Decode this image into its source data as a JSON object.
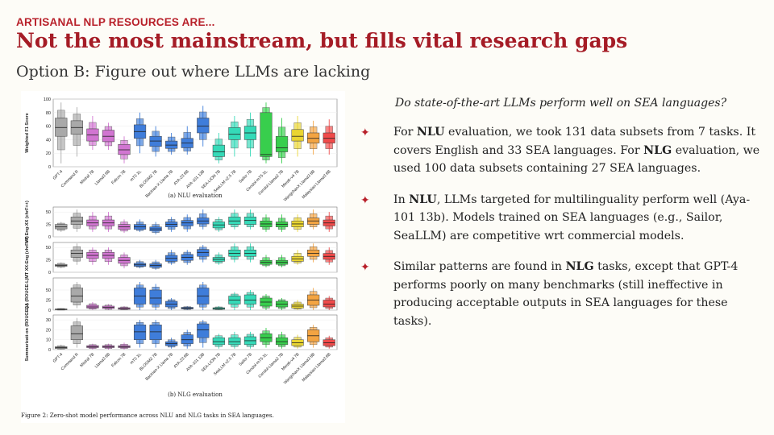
{
  "slide": {
    "kicker": "ARTISANAL NLP RESOURCES ARE...",
    "title": "Not the most mainstream, but fills vital research gaps",
    "subtitle": "Option B: Figure out where LLMs are lacking",
    "question": "Do state-of-the-art LLMs perform well on SEA languages?",
    "bullet_icon": "four-point-star-icon",
    "accent_color": "#a51c26",
    "bullets": [
      {
        "parts": [
          "For ",
          "NLU",
          " evaluation, we took 131 data subsets from 7 tasks. It covers English and 33 SEA languages. For ",
          "NLG",
          " evaluation, we used 100 data subsets containing 27 SEA languages."
        ]
      },
      {
        "parts": [
          "In ",
          "NLU",
          ", LLMs targeted for multilinguality perform well (Aya-101 13b). Models trained on SEA languages (e.g., Sailor, SeaLLM) are competitive wrt commercial models."
        ]
      },
      {
        "parts": [
          "Similar patterns are found in ",
          "NLG",
          " tasks, except that GPT-4 performs poorly on many benchmarks (still ineffective in producing acceptable outputs in SEA languages for these tasks)."
        ]
      }
    ]
  },
  "chart_data": {
    "type": "boxen",
    "caption": "Figure 2: Zero-shot model performance across NLU and NLG tasks in SEA languages.",
    "nlu": {
      "label": "(a) NLU evaluation",
      "ylabel": "Weighted F1 Score",
      "ylim": [
        0,
        100
      ],
      "yticks": [
        "0",
        "20",
        "40",
        "60",
        "80",
        "100"
      ],
      "models": [
        "GPT-4",
        "Command R",
        "Mistral 7B",
        "Llama3 8B",
        "Falcon 7B",
        "mT0 XL",
        "BLOOMZ 7B",
        "Bactrian-X Llama 7B",
        "AYA-23 8B",
        "AYA-101 13B",
        "SEA-LION 7B",
        "SeaLLM v2.5 7B",
        "Sailor 7B",
        "Cendol-mT5 XL",
        "Cendol-Llama2 7B",
        "Merak-v4 7B",
        "WangchanX Llama3 8B",
        "Malaysian Llama3 8B"
      ],
      "colors": [
        "#a0a0a0",
        "#a0a0a0",
        "#cc66cc",
        "#cc66cc",
        "#cc66cc",
        "#2a6fd6",
        "#2a6fd6",
        "#2a6fd6",
        "#2a6fd6",
        "#2a6fd6",
        "#1fd6b0",
        "#1fd6b0",
        "#1fd6b0",
        "#22c93a",
        "#22c93a",
        "#e8d01c",
        "#f29a2e",
        "#ee3636"
      ],
      "stats": [
        {
          "min": 5,
          "q1": 45,
          "median": 58,
          "q3": 72,
          "max": 95
        },
        {
          "min": 15,
          "q1": 48,
          "median": 58,
          "q3": 68,
          "max": 88
        },
        {
          "min": 25,
          "q1": 38,
          "median": 47,
          "q3": 56,
          "max": 75
        },
        {
          "min": 25,
          "q1": 37,
          "median": 45,
          "q3": 54,
          "max": 65
        },
        {
          "min": 5,
          "q1": 18,
          "median": 25,
          "q3": 33,
          "max": 45
        },
        {
          "min": 20,
          "q1": 42,
          "median": 52,
          "q3": 62,
          "max": 80
        },
        {
          "min": 15,
          "q1": 30,
          "median": 38,
          "q3": 45,
          "max": 60
        },
        {
          "min": 18,
          "q1": 27,
          "median": 32,
          "q3": 38,
          "max": 50
        },
        {
          "min": 18,
          "q1": 28,
          "median": 35,
          "q3": 42,
          "max": 60
        },
        {
          "min": 30,
          "q1": 50,
          "median": 60,
          "q3": 72,
          "max": 90
        },
        {
          "min": 5,
          "q1": 15,
          "median": 22,
          "q3": 32,
          "max": 50
        },
        {
          "min": 15,
          "q1": 40,
          "median": 48,
          "q3": 58,
          "max": 75
        },
        {
          "min": 15,
          "q1": 40,
          "median": 50,
          "q3": 60,
          "max": 80
        },
        {
          "min": 5,
          "q1": 15,
          "median": 18,
          "q3": 80,
          "max": 95
        },
        {
          "min": 5,
          "q1": 22,
          "median": 28,
          "q3": 45,
          "max": 72
        },
        {
          "min": 15,
          "q1": 38,
          "median": 45,
          "q3": 55,
          "max": 75
        },
        {
          "min": 18,
          "q1": 35,
          "median": 42,
          "q3": 50,
          "max": 68
        },
        {
          "min": 18,
          "q1": 35,
          "median": 42,
          "q3": 50,
          "max": 70
        }
      ]
    },
    "nlg": {
      "label": "(b) NLG evaluation",
      "models": [
        "GPT-4",
        "Command R",
        "Mistral 7B",
        "Llama3 8B",
        "Falcon 7B",
        "mT0 XL",
        "BLOOMZ 7B",
        "Bactrian-X Llama 7B",
        "AYA-23 8B",
        "AYA-101 13B",
        "SEA-LION 7B",
        "SeaLLM v2.5 7B",
        "Sailor 7B",
        "Cendol-mT5 XL",
        "Cendol-Llama2 7B",
        "Merak-v4 7B",
        "WangchanX Llama3 8B",
        "Malaysian Llama3 8B"
      ],
      "colors": [
        "#a0a0a0",
        "#a0a0a0",
        "#cc66cc",
        "#cc66cc",
        "#cc66cc",
        "#2a6fd6",
        "#2a6fd6",
        "#2a6fd6",
        "#2a6fd6",
        "#2a6fd6",
        "#1fd6b0",
        "#1fd6b0",
        "#1fd6b0",
        "#22c93a",
        "#22c93a",
        "#e8d01c",
        "#f29a2e",
        "#ee3636"
      ],
      "panels": [
        {
          "ylabel": "MT Eng-XX (chrF++)",
          "ylim": [
            0,
            60
          ],
          "yticks": [
            "0",
            "25",
            "50"
          ],
          "stats": [
            {
              "min": 10,
              "q1": 16,
              "median": 20,
              "q3": 25,
              "max": 30
            },
            {
              "min": 10,
              "q1": 25,
              "median": 32,
              "q3": 40,
              "max": 55
            },
            {
              "min": 10,
              "q1": 22,
              "median": 28,
              "q3": 34,
              "max": 50
            },
            {
              "min": 10,
              "q1": 22,
              "median": 28,
              "q3": 34,
              "max": 50
            },
            {
              "min": 8,
              "q1": 15,
              "median": 20,
              "q3": 25,
              "max": 35
            },
            {
              "min": 10,
              "q1": 15,
              "median": 20,
              "q3": 25,
              "max": 35
            },
            {
              "min": 5,
              "q1": 12,
              "median": 16,
              "q3": 20,
              "max": 30
            },
            {
              "min": 10,
              "q1": 20,
              "median": 25,
              "q3": 30,
              "max": 40
            },
            {
              "min": 10,
              "q1": 22,
              "median": 28,
              "q3": 33,
              "max": 45
            },
            {
              "min": 15,
              "q1": 26,
              "median": 32,
              "q3": 38,
              "max": 55
            },
            {
              "min": 10,
              "q1": 18,
              "median": 24,
              "q3": 30,
              "max": 40
            },
            {
              "min": 15,
              "q1": 25,
              "median": 32,
              "q3": 40,
              "max": 55
            },
            {
              "min": 15,
              "q1": 25,
              "median": 33,
              "q3": 40,
              "max": 55
            },
            {
              "min": 10,
              "q1": 20,
              "median": 26,
              "q3": 32,
              "max": 45
            },
            {
              "min": 10,
              "q1": 20,
              "median": 25,
              "q3": 30,
              "max": 45
            },
            {
              "min": 10,
              "q1": 20,
              "median": 26,
              "q3": 32,
              "max": 45
            },
            {
              "min": 15,
              "q1": 25,
              "median": 32,
              "q3": 38,
              "max": 55
            },
            {
              "min": 10,
              "q1": 22,
              "median": 28,
              "q3": 34,
              "max": 50
            }
          ]
        },
        {
          "ylabel": "MT XX-Eng (chrF++)",
          "ylim": [
            0,
            60
          ],
          "yticks": [
            "0",
            "25",
            "50"
          ],
          "stats": [
            {
              "min": 8,
              "q1": 12,
              "median": 14,
              "q3": 16,
              "max": 20
            },
            {
              "min": 15,
              "q1": 30,
              "median": 38,
              "q3": 45,
              "max": 58
            },
            {
              "min": 15,
              "q1": 28,
              "median": 34,
              "q3": 40,
              "max": 50
            },
            {
              "min": 15,
              "q1": 28,
              "median": 34,
              "q3": 40,
              "max": 50
            },
            {
              "min": 8,
              "q1": 18,
              "median": 24,
              "q3": 30,
              "max": 40
            },
            {
              "min": 8,
              "q1": 12,
              "median": 15,
              "q3": 18,
              "max": 25
            },
            {
              "min": 5,
              "q1": 10,
              "median": 14,
              "q3": 17,
              "max": 25
            },
            {
              "min": 15,
              "q1": 22,
              "median": 28,
              "q3": 34,
              "max": 45
            },
            {
              "min": 15,
              "q1": 24,
              "median": 30,
              "q3": 36,
              "max": 45
            },
            {
              "min": 20,
              "q1": 32,
              "median": 40,
              "q3": 46,
              "max": 55
            },
            {
              "min": 15,
              "q1": 22,
              "median": 26,
              "q3": 30,
              "max": 40
            },
            {
              "min": 20,
              "q1": 32,
              "median": 38,
              "q3": 45,
              "max": 58
            },
            {
              "min": 20,
              "q1": 32,
              "median": 38,
              "q3": 45,
              "max": 58
            },
            {
              "min": 10,
              "q1": 16,
              "median": 20,
              "q3": 24,
              "max": 35
            },
            {
              "min": 10,
              "q1": 16,
              "median": 20,
              "q3": 24,
              "max": 35
            },
            {
              "min": 15,
              "q1": 22,
              "median": 27,
              "q3": 32,
              "max": 45
            },
            {
              "min": 20,
              "q1": 32,
              "median": 38,
              "q3": 45,
              "max": 58
            },
            {
              "min": 15,
              "q1": 26,
              "median": 32,
              "q3": 38,
              "max": 50
            }
          ]
        },
        {
          "ylabel": "QA (ROUGE-L)",
          "ylim": [
            0,
            80
          ],
          "yticks": [
            "0",
            "25",
            "50"
          ],
          "stats": [
            {
              "min": 0,
              "q1": 1,
              "median": 2,
              "q3": 3,
              "max": 5
            },
            {
              "min": 5,
              "q1": 20,
              "median": 35,
              "q3": 55,
              "max": 70
            },
            {
              "min": 0,
              "q1": 5,
              "median": 8,
              "q3": 12,
              "max": 20
            },
            {
              "min": 0,
              "q1": 4,
              "median": 7,
              "q3": 10,
              "max": 15
            },
            {
              "min": 0,
              "q1": 2,
              "median": 4,
              "q3": 6,
              "max": 10
            },
            {
              "min": 0,
              "q1": 15,
              "median": 35,
              "q3": 55,
              "max": 70
            },
            {
              "min": 0,
              "q1": 15,
              "median": 30,
              "q3": 50,
              "max": 65
            },
            {
              "min": 0,
              "q1": 8,
              "median": 15,
              "q3": 22,
              "max": 30
            },
            {
              "min": 0,
              "q1": 3,
              "median": 5,
              "q3": 7,
              "max": 10
            },
            {
              "min": 0,
              "q1": 15,
              "median": 35,
              "q3": 55,
              "max": 70
            },
            {
              "min": 0,
              "q1": 2,
              "median": 4,
              "q3": 6,
              "max": 10
            },
            {
              "min": 0,
              "q1": 15,
              "median": 25,
              "q3": 35,
              "max": 45
            },
            {
              "min": 0,
              "q1": 15,
              "median": 25,
              "q3": 38,
              "max": 50
            },
            {
              "min": 0,
              "q1": 10,
              "median": 20,
              "q3": 30,
              "max": 40
            },
            {
              "min": 0,
              "q1": 8,
              "median": 15,
              "q3": 22,
              "max": 30
            },
            {
              "min": 0,
              "q1": 5,
              "median": 10,
              "q3": 15,
              "max": 25
            },
            {
              "min": 0,
              "q1": 12,
              "median": 25,
              "q3": 38,
              "max": 55
            },
            {
              "min": 0,
              "q1": 8,
              "median": 15,
              "q3": 25,
              "max": 35
            }
          ]
        },
        {
          "ylabel": "Summarizati-on (ROUGE-L)",
          "ylim": [
            0,
            35
          ],
          "yticks": [
            "0",
            "10",
            "20",
            "30"
          ],
          "stats": [
            {
              "min": 0,
              "q1": 1,
              "median": 2,
              "q3": 3,
              "max": 5
            },
            {
              "min": 2,
              "q1": 10,
              "median": 16,
              "q3": 24,
              "max": 32
            },
            {
              "min": 0,
              "q1": 2,
              "median": 3,
              "q3": 4,
              "max": 6
            },
            {
              "min": 0,
              "q1": 2,
              "median": 3,
              "q3": 4,
              "max": 6
            },
            {
              "min": 0,
              "q1": 2,
              "median": 3,
              "q3": 4,
              "max": 7
            },
            {
              "min": 2,
              "q1": 10,
              "median": 18,
              "q3": 25,
              "max": 30
            },
            {
              "min": 2,
              "q1": 10,
              "median": 18,
              "q3": 25,
              "max": 30
            },
            {
              "min": 1,
              "q1": 4,
              "median": 6,
              "q3": 8,
              "max": 12
            },
            {
              "min": 1,
              "q1": 6,
              "median": 10,
              "q3": 15,
              "max": 20
            },
            {
              "min": 2,
              "q1": 12,
              "median": 20,
              "q3": 26,
              "max": 30
            },
            {
              "min": 1,
              "q1": 5,
              "median": 8,
              "q3": 12,
              "max": 16
            },
            {
              "min": 1,
              "q1": 5,
              "median": 8,
              "q3": 12,
              "max": 18
            },
            {
              "min": 1,
              "q1": 5,
              "median": 9,
              "q3": 13,
              "max": 18
            },
            {
              "min": 2,
              "q1": 8,
              "median": 12,
              "q3": 16,
              "max": 22
            },
            {
              "min": 1,
              "q1": 5,
              "median": 8,
              "q3": 12,
              "max": 18
            },
            {
              "min": 1,
              "q1": 4,
              "median": 7,
              "q3": 10,
              "max": 15
            },
            {
              "min": 2,
              "q1": 8,
              "median": 14,
              "q3": 20,
              "max": 25
            },
            {
              "min": 1,
              "q1": 4,
              "median": 7,
              "q3": 10,
              "max": 14
            }
          ]
        }
      ]
    }
  }
}
